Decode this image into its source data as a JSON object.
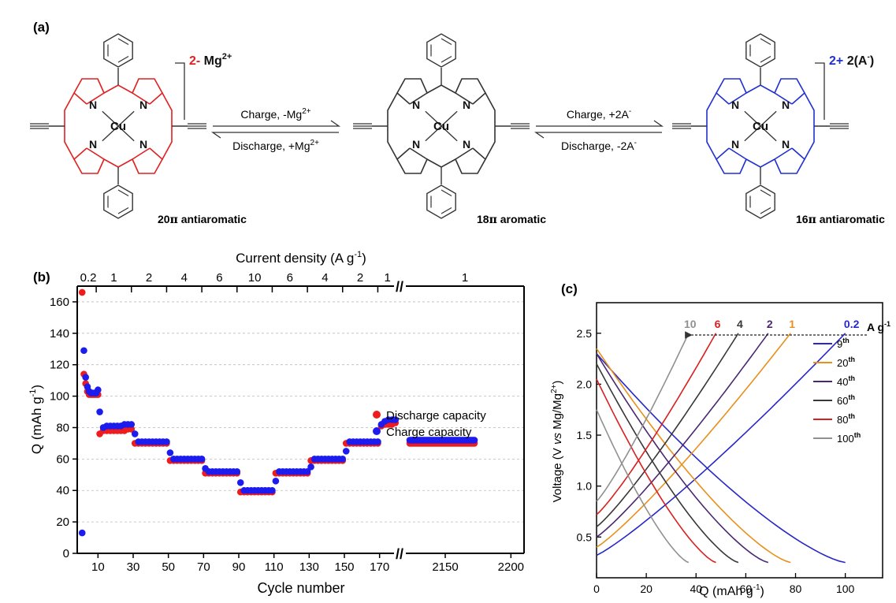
{
  "panel_a": {
    "label": "(a)",
    "left": {
      "caption_num": "20",
      "caption_pi": "π",
      "caption_word": " antiaromatic",
      "charge": "2-",
      "counter_ion": " Mg",
      "counter_sup": "2+",
      "metal": "Cu",
      "N": "N",
      "color": "#e02020"
    },
    "middle": {
      "caption_num": "18",
      "caption_pi": "π",
      "caption_word": " aromatic",
      "metal": "Cu",
      "N": "N",
      "color": "#333333"
    },
    "right": {
      "caption_num": "16",
      "caption_pi": "π",
      "caption_word": " antiaromatic",
      "charge": "2+",
      "counter_ion": " 2(A",
      "counter_sup": "-",
      "counter_close": ")",
      "metal": "Cu",
      "N": "N",
      "color": "#2030d0"
    },
    "arrow1": {
      "top": "Charge, -Mg",
      "top_sup": "2+",
      "bottom": "Discharge, +Mg",
      "bottom_sup": "2+"
    },
    "arrow2": {
      "top": "Charge, +2A",
      "top_sup": "-",
      "bottom": "Discharge, -2A",
      "bottom_sup": "-"
    }
  },
  "panel_b_label": "(b)",
  "panel_c_label": "(c)",
  "chart_data": [
    {
      "type": "scatter",
      "panel": "b",
      "xlabel": "Cycle number",
      "ylabel": "Q (mAh g",
      "ylabel_sup": "-1",
      "ylabel_end": ")",
      "top_label": "Current density (A g",
      "top_label_sup": "-1",
      "top_label_end": ")",
      "ylim": [
        0,
        170
      ],
      "yticks": [
        "0",
        "20",
        "40",
        "60",
        "80",
        "100",
        "120",
        "140",
        "160"
      ],
      "xticks_left": [
        "10",
        "30",
        "50",
        "70",
        "90",
        "110",
        "130",
        "150",
        "170"
      ],
      "xticks_right": [
        "2150",
        "2200"
      ],
      "axis_break": "//",
      "top_segments": [
        "0.2",
        "1",
        "2",
        "4",
        "6",
        "10",
        "6",
        "4",
        "2",
        "1",
        "1"
      ],
      "legend": [
        "Discharge capacity",
        "Charge capacity"
      ],
      "legend_position": "bottom-right",
      "grid": true,
      "colors": {
        "discharge": "#ee1c1c",
        "charge": "#1c1cee"
      },
      "series": [
        {
          "name": "Discharge capacity",
          "x": [
            1,
            2,
            3,
            4,
            5,
            6,
            7,
            8,
            9,
            10,
            11,
            13,
            15,
            17,
            19,
            21,
            23,
            25,
            27,
            29,
            31,
            33,
            35,
            37,
            39,
            41,
            43,
            45,
            47,
            49,
            51,
            53,
            55,
            57,
            59,
            61,
            63,
            65,
            67,
            69,
            71,
            73,
            75,
            77,
            79,
            81,
            83,
            85,
            87,
            89,
            91,
            93,
            95,
            97,
            99,
            101,
            103,
            105,
            107,
            109,
            111,
            113,
            115,
            117,
            119,
            121,
            123,
            125,
            127,
            129,
            131,
            133,
            135,
            137,
            139,
            141,
            143,
            145,
            147,
            149,
            151,
            153,
            155,
            157,
            159,
            161,
            163,
            165,
            167,
            169,
            171,
            173,
            175,
            177,
            179
          ],
          "y": [
            166,
            114,
            108,
            103,
            101,
            101,
            101,
            101,
            101,
            101,
            76,
            78,
            78,
            78,
            78,
            78,
            78,
            78,
            79,
            79,
            70,
            70,
            70,
            70,
            70,
            70,
            70,
            70,
            70,
            70,
            59,
            59,
            59,
            59,
            59,
            59,
            59,
            59,
            59,
            59,
            51,
            51,
            51,
            51,
            51,
            51,
            51,
            51,
            51,
            51,
            39,
            39,
            39,
            39,
            39,
            39,
            39,
            39,
            39,
            39,
            51,
            51,
            51,
            51,
            51,
            51,
            51,
            51,
            51,
            51,
            59,
            59,
            59,
            59,
            59,
            59,
            59,
            59,
            59,
            59,
            70,
            70,
            70,
            70,
            70,
            70,
            70,
            70,
            70,
            70,
            81,
            82,
            82,
            82,
            83
          ]
        },
        {
          "name": "Charge capacity",
          "x": [
            1,
            2,
            3,
            4,
            5,
            6,
            7,
            8,
            9,
            10,
            11,
            13,
            15,
            17,
            19,
            21,
            23,
            25,
            27,
            29,
            31,
            33,
            35,
            37,
            39,
            41,
            43,
            45,
            47,
            49,
            51,
            53,
            55,
            57,
            59,
            61,
            63,
            65,
            67,
            69,
            71,
            73,
            75,
            77,
            79,
            81,
            83,
            85,
            87,
            89,
            91,
            93,
            95,
            97,
            99,
            101,
            103,
            105,
            107,
            109,
            111,
            113,
            115,
            117,
            119,
            121,
            123,
            125,
            127,
            129,
            131,
            133,
            135,
            137,
            139,
            141,
            143,
            145,
            147,
            149,
            151,
            153,
            155,
            157,
            159,
            161,
            163,
            165,
            167,
            169,
            171,
            173,
            175,
            177,
            179
          ],
          "y": [
            13,
            129,
            112,
            106,
            103,
            102,
            102,
            102,
            102,
            104,
            90,
            80,
            81,
            81,
            81,
            81,
            81,
            82,
            82,
            82,
            76,
            71,
            71,
            71,
            71,
            71,
            71,
            71,
            71,
            71,
            64,
            60,
            60,
            60,
            60,
            60,
            60,
            60,
            60,
            60,
            54,
            52,
            52,
            52,
            52,
            52,
            52,
            52,
            52,
            52,
            45,
            40,
            40,
            40,
            40,
            40,
            40,
            40,
            40,
            40,
            46,
            52,
            52,
            52,
            52,
            52,
            52,
            52,
            52,
            52,
            55,
            60,
            60,
            60,
            60,
            60,
            60,
            60,
            60,
            60,
            65,
            71,
            71,
            71,
            71,
            71,
            71,
            71,
            71,
            71,
            82,
            84,
            85,
            85,
            85
          ]
        },
        {
          "name": "Discharge capacity",
          "segment": "long-term",
          "x_range": [
            2123,
            2173
          ],
          "y": 70
        },
        {
          "name": "Charge capacity",
          "segment": "long-term",
          "x_range": [
            2123,
            2173
          ],
          "y": 72
        }
      ]
    },
    {
      "type": "line",
      "panel": "c",
      "xlabel": "Q (mAh g",
      "xlabel_sup": "-1",
      "xlabel_end": ")",
      "ylabel": "Voltage (V ",
      "ylabel_italic": "vs",
      "ylabel_end": " Mg/Mg",
      "ylabel_sup": "2+",
      "ylabel_close": ")",
      "xlim": [
        0,
        115
      ],
      "ylim": [
        0.1,
        2.8
      ],
      "xticks": [
        "0",
        "20",
        "40",
        "60",
        "80",
        "100"
      ],
      "yticks": [
        "0.5",
        "1.0",
        "1.5",
        "2.0",
        "2.5"
      ],
      "arrow_unit": "A g",
      "arrow_unit_sup": "-1",
      "legend_position": "right",
      "series": [
        {
          "name": "9",
          "name_sup": "th",
          "rate": "0.2",
          "color": "#2828c8",
          "charge_max": 100,
          "discharge_max": 100
        },
        {
          "name": "20",
          "name_sup": "th",
          "rate": "1",
          "color": "#e8901c",
          "charge_max": 78,
          "discharge_max": 78
        },
        {
          "name": "40",
          "name_sup": "th",
          "rate": "2",
          "color": "#4a2870",
          "charge_max": 69,
          "discharge_max": 69
        },
        {
          "name": "60",
          "name_sup": "th",
          "rate": "4",
          "color": "#383838",
          "charge_max": 57,
          "discharge_max": 57
        },
        {
          "name": "80",
          "name_sup": "th",
          "rate": "6",
          "color": "#d82020",
          "charge_max": 48,
          "discharge_max": 48
        },
        {
          "name": "100",
          "name_sup": "th",
          "rate": "10",
          "color": "#909090",
          "charge_max": 37,
          "discharge_max": 37
        }
      ],
      "curve_endpoints": {
        "charge_start_v": [
          0.32,
          0.4,
          0.5,
          0.6,
          0.72,
          0.85
        ],
        "charge_end_v": 2.5,
        "discharge_start_v": [
          2.3,
          2.35,
          2.3,
          2.2,
          2.05,
          1.75
        ],
        "discharge_end_v": 0.25
      }
    }
  ]
}
